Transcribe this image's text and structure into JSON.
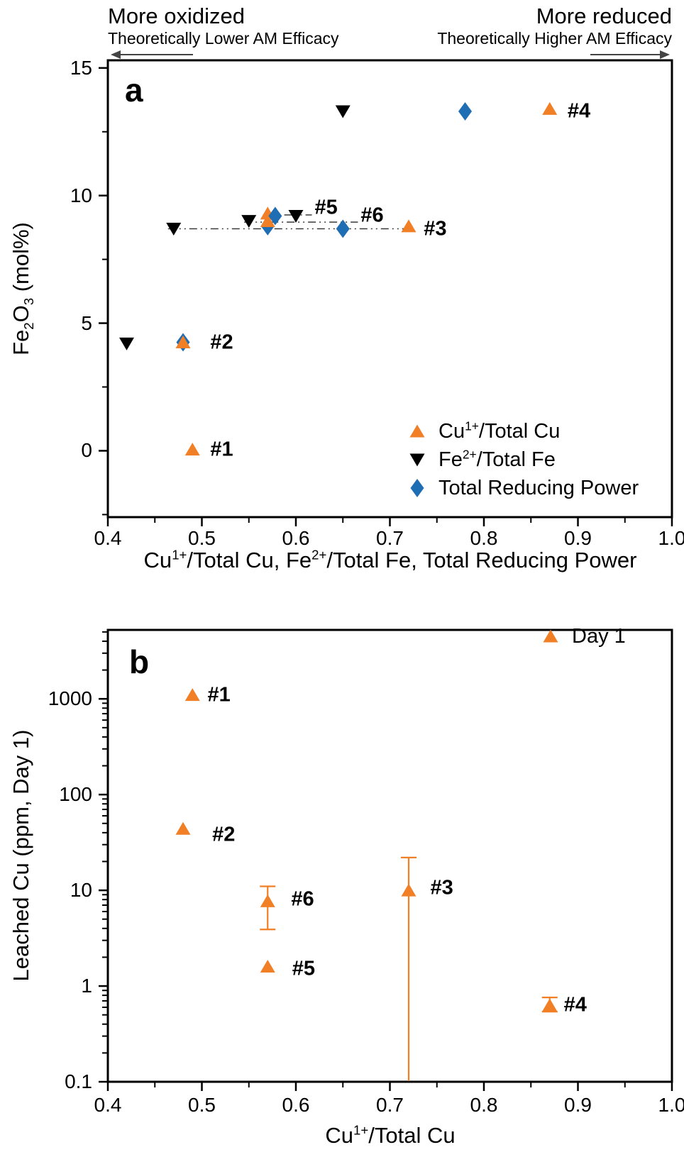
{
  "figure": {
    "annotations": {
      "more_oxidized": "More oxidized",
      "more_reduced": "More reduced",
      "lower_efficacy": "Theoretically Lower AM Efficacy",
      "higher_efficacy": "Theoretically Higher AM Efficacy"
    },
    "colors": {
      "orange": "#F07F26",
      "blue": "#1F6DB2",
      "black": "#000000",
      "connector": "#3a3a3a",
      "arrow": "#444444"
    }
  },
  "chart_data": [
    {
      "id": "a",
      "panel_label": "a",
      "type": "scatter",
      "xlabel": "Cu^{1+}/Total Cu, Fe^{2+}/Total Fe, Total Reducing Power",
      "ylabel": "Fe_{2}O_{3} (mol%)",
      "xscale": "linear",
      "yscale": "linear",
      "xlim": [
        0.4,
        1.0
      ],
      "ylim": [
        -2.6,
        15.3
      ],
      "x_ticks": [
        {
          "v": 0.4,
          "l": "0.4"
        },
        {
          "v": 0.5,
          "l": "0.5"
        },
        {
          "v": 0.6,
          "l": "0.6"
        },
        {
          "v": 0.7,
          "l": "0.7"
        },
        {
          "v": 0.8,
          "l": "0.8"
        },
        {
          "v": 0.9,
          "l": "0.9"
        },
        {
          "v": 1.0,
          "l": "1.0"
        }
      ],
      "x_minor": [
        0.45,
        0.55,
        0.65,
        0.75,
        0.85,
        0.95
      ],
      "y_ticks": [
        {
          "v": 0,
          "l": "0"
        },
        {
          "v": 5,
          "l": "5"
        },
        {
          "v": 10,
          "l": "10"
        },
        {
          "v": 15,
          "l": "15"
        }
      ],
      "y_minor": [
        -2.5,
        2.5,
        7.5,
        12.5
      ],
      "series": [
        {
          "name": "Cu^{1+}/Total Cu",
          "marker": "triangle-up",
          "color": "orange",
          "points": [
            {
              "sample": "#1",
              "x": 0.49,
              "y": 0.05
            },
            {
              "sample": "#2",
              "x": 0.48,
              "y": 4.25
            },
            {
              "sample": "#3",
              "x": 0.72,
              "y": 8.8
            },
            {
              "sample": "#4",
              "x": 0.87,
              "y": 13.4
            },
            {
              "sample": "#5",
              "x": 0.57,
              "y": 9.3
            },
            {
              "sample": "#6",
              "x": 0.57,
              "y": 9.0
            }
          ]
        },
        {
          "name": "Fe^{2+}/Total Fe",
          "marker": "triangle-down",
          "color": "black",
          "points": [
            {
              "sample": "#2",
              "x": 0.42,
              "y": 4.2
            },
            {
              "sample": "#3",
              "x": 0.47,
              "y": 8.7
            },
            {
              "sample": "#4",
              "x": 0.65,
              "y": 13.3
            },
            {
              "sample": "#5",
              "x": 0.6,
              "y": 9.2
            },
            {
              "sample": "#6",
              "x": 0.55,
              "y": 9.0
            }
          ]
        },
        {
          "name": "Total Reducing Power",
          "marker": "diamond",
          "color": "blue",
          "points": [
            {
              "sample": "#2",
              "x": 0.48,
              "y": 4.25,
              "behind": true
            },
            {
              "sample": "#3",
              "x": 0.65,
              "y": 8.7
            },
            {
              "sample": "#4",
              "x": 0.78,
              "y": 13.3
            },
            {
              "sample": "#5",
              "x": 0.578,
              "y": 9.2
            },
            {
              "sample": "#6",
              "x": 0.57,
              "y": 8.8,
              "behind": true
            }
          ]
        }
      ],
      "connectors": [
        {
          "sample": "#3",
          "y": 8.7,
          "x1": 0.464,
          "x2": 0.72
        },
        {
          "sample": "#5",
          "y": 9.24,
          "x1": 0.565,
          "x2": 0.617
        },
        {
          "sample": "#6",
          "y": 8.96,
          "x1": 0.545,
          "x2": 0.666
        }
      ],
      "point_labels": [
        {
          "text": "#1",
          "x": 0.509,
          "y": 0.05
        },
        {
          "text": "#2",
          "x": 0.509,
          "y": 4.25
        },
        {
          "text": "#3",
          "x": 0.736,
          "y": 8.68
        },
        {
          "text": "#4",
          "x": 0.889,
          "y": 13.3
        },
        {
          "text": "#5",
          "x": 0.62,
          "y": 9.52
        },
        {
          "text": "#6",
          "x": 0.669,
          "y": 9.2
        }
      ],
      "legend": [
        {
          "label": "Cu^{1+}/Total Cu",
          "marker": "triangle-up",
          "color": "orange"
        },
        {
          "label": "Fe^{2+}/Total Fe",
          "marker": "triangle-down",
          "color": "black"
        },
        {
          "label": "Total Reducing Power",
          "marker": "diamond",
          "color": "blue"
        }
      ]
    },
    {
      "id": "b",
      "panel_label": "b",
      "type": "scatter",
      "xlabel": "Cu^{1+}/Total Cu",
      "ylabel": "Leached Cu (ppm, Day 1)",
      "xscale": "linear",
      "yscale": "log",
      "xlim": [
        0.4,
        1.0
      ],
      "ylim": [
        0.1,
        5250
      ],
      "x_ticks": [
        {
          "v": 0.4,
          "l": "0.4"
        },
        {
          "v": 0.5,
          "l": "0.5"
        },
        {
          "v": 0.6,
          "l": "0.6"
        },
        {
          "v": 0.7,
          "l": "0.7"
        },
        {
          "v": 0.8,
          "l": "0.8"
        },
        {
          "v": 0.9,
          "l": "0.9"
        },
        {
          "v": 1.0,
          "l": "1.0"
        }
      ],
      "x_minor": [
        0.45,
        0.55,
        0.65,
        0.75,
        0.85,
        0.95
      ],
      "y_ticks": [
        {
          "v": 0.1,
          "l": "0.1"
        },
        {
          "v": 1,
          "l": "1"
        },
        {
          "v": 10,
          "l": "10"
        },
        {
          "v": 100,
          "l": "100"
        },
        {
          "v": 1000,
          "l": "1000"
        }
      ],
      "series": [
        {
          "name": "Day 1",
          "marker": "triangle-up",
          "color": "orange",
          "points": [
            {
              "sample": "#1",
              "x": 0.49,
              "y": 1100
            },
            {
              "sample": "#2",
              "x": 0.48,
              "y": 44
            },
            {
              "sample": "#3",
              "x": 0.72,
              "y": 10,
              "err_hi": 22,
              "err_lo": 0.1,
              "lo_clipped": true
            },
            {
              "sample": "#4",
              "x": 0.87,
              "y": 0.63,
              "err_hi": 0.76,
              "err_lo": 0.54
            },
            {
              "sample": "#5",
              "x": 0.57,
              "y": 1.6
            },
            {
              "sample": "#6",
              "x": 0.57,
              "y": 7.7,
              "err_hi": 11,
              "err_lo": 3.9
            }
          ]
        }
      ],
      "point_labels": [
        {
          "text": "#1",
          "x": 0.506,
          "y": 1100
        },
        {
          "text": "#2",
          "x": 0.511,
          "y": 38
        },
        {
          "text": "#3",
          "x": 0.743,
          "y": 10.5
        },
        {
          "text": "#4",
          "x": 0.885,
          "y": 0.63
        },
        {
          "text": "#5",
          "x": 0.596,
          "y": 1.5
        },
        {
          "text": "#6",
          "x": 0.595,
          "y": 8.0
        }
      ],
      "legend": [
        {
          "label": "Day 1",
          "marker": "triangle-up",
          "color": "orange"
        }
      ]
    }
  ]
}
